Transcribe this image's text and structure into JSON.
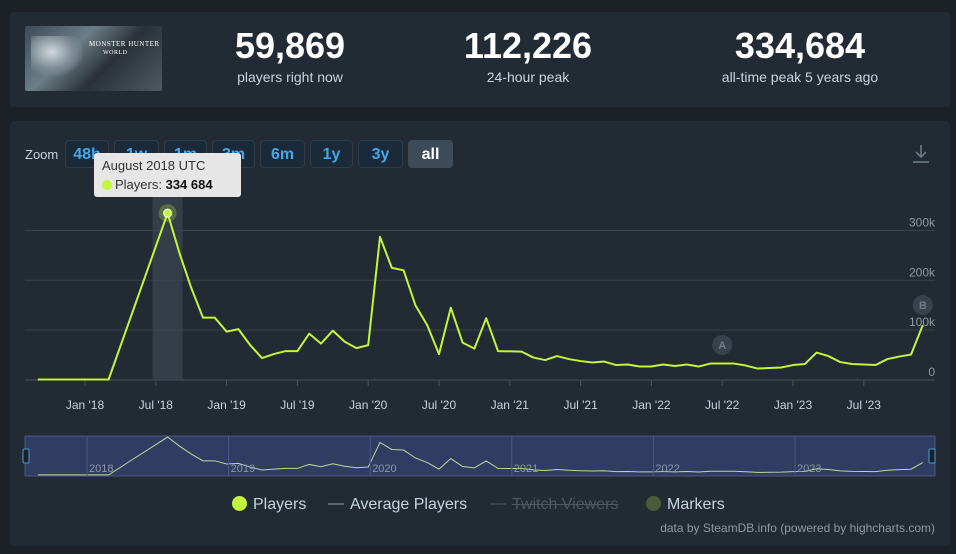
{
  "stats": [
    {
      "value": "59,869",
      "label": "players right now"
    },
    {
      "value": "112,226",
      "label": "24-hour peak"
    },
    {
      "value": "334,684",
      "label": "all-time peak 5 years ago"
    }
  ],
  "game_image": {
    "logo_text": "MONSTER HUNTER",
    "logo_subtext": "WORLD"
  },
  "zoom": {
    "label": "Zoom",
    "buttons": [
      "48h",
      "1w",
      "1m",
      "3m",
      "6m",
      "1y",
      "3y",
      "all"
    ],
    "active": "all"
  },
  "tooltip": {
    "date": "August 2018 UTC",
    "series": "Players:",
    "value": "334 684"
  },
  "legend": [
    {
      "name": "Players",
      "style": "dot",
      "color": "#c3f53c"
    },
    {
      "name": "Average Players",
      "style": "line",
      "color": "#5c6772"
    },
    {
      "name": "Twitch Viewers",
      "style": "line-struck",
      "color": "#39434d"
    },
    {
      "name": "Markers",
      "style": "dot",
      "color": "#4a5b3a"
    }
  ],
  "credit": "data by SteamDB.info (powered by highcharts.com)",
  "chart_data": {
    "type": "line",
    "title": "",
    "xlabel": "",
    "ylabel": "",
    "x_ticks": [
      "Jan '18",
      "Jul '18",
      "Jan '19",
      "Jul '19",
      "Jan '20",
      "Jul '20",
      "Jan '21",
      "Jul '21",
      "Jan '22",
      "Jul '22",
      "Jan '23",
      "Jul '23"
    ],
    "y_ticks": [
      "0",
      "100k",
      "200k",
      "300k"
    ],
    "ylim": [
      0,
      335000
    ],
    "grid": true,
    "highlight_month": "2018-08",
    "series": [
      {
        "name": "Players",
        "color": "#c3f53c",
        "points": [
          [
            "2017-09",
            1000
          ],
          [
            "2017-12",
            1000
          ],
          [
            "2018-03",
            1000
          ],
          [
            "2018-08",
            334684
          ],
          [
            "2018-09",
            255000
          ],
          [
            "2018-10",
            185000
          ],
          [
            "2018-11",
            125000
          ],
          [
            "2018-12",
            125000
          ],
          [
            "2019-01",
            97000
          ],
          [
            "2019-02",
            102000
          ],
          [
            "2019-03",
            70000
          ],
          [
            "2019-04",
            44000
          ],
          [
            "2019-05",
            52000
          ],
          [
            "2019-06",
            58000
          ],
          [
            "2019-07",
            58000
          ],
          [
            "2019-08",
            93000
          ],
          [
            "2019-09",
            73000
          ],
          [
            "2019-10",
            99000
          ],
          [
            "2019-11",
            77000
          ],
          [
            "2019-12",
            64000
          ],
          [
            "2020-01",
            70000
          ],
          [
            "2020-02",
            287000
          ],
          [
            "2020-03",
            225000
          ],
          [
            "2020-04",
            220000
          ],
          [
            "2020-05",
            150000
          ],
          [
            "2020-06",
            110000
          ],
          [
            "2020-07",
            52000
          ],
          [
            "2020-08",
            145000
          ],
          [
            "2020-09",
            75000
          ],
          [
            "2020-10",
            63000
          ],
          [
            "2020-11",
            124000
          ],
          [
            "2020-12",
            58000
          ],
          [
            "2021-02",
            57000
          ],
          [
            "2021-03",
            45000
          ],
          [
            "2021-04",
            40000
          ],
          [
            "2021-05",
            48000
          ],
          [
            "2021-06",
            42000
          ],
          [
            "2021-07",
            38000
          ],
          [
            "2021-08",
            35000
          ],
          [
            "2021-09",
            37000
          ],
          [
            "2021-10",
            30000
          ],
          [
            "2021-11",
            31000
          ],
          [
            "2021-12",
            27000
          ],
          [
            "2022-01",
            27000
          ],
          [
            "2022-02",
            31000
          ],
          [
            "2022-03",
            28000
          ],
          [
            "2022-04",
            31000
          ],
          [
            "2022-05",
            27000
          ],
          [
            "2022-06",
            33000
          ],
          [
            "2022-08",
            33000
          ],
          [
            "2022-09",
            29000
          ],
          [
            "2022-10",
            23000
          ],
          [
            "2022-11",
            24000
          ],
          [
            "2022-12",
            25000
          ],
          [
            "2023-01",
            30000
          ],
          [
            "2023-02",
            32000
          ],
          [
            "2023-03",
            55000
          ],
          [
            "2023-04",
            48000
          ],
          [
            "2023-05",
            36000
          ],
          [
            "2023-06",
            32000
          ],
          [
            "2023-07",
            31000
          ],
          [
            "2023-08",
            30000
          ],
          [
            "2023-09",
            42000
          ],
          [
            "2023-10",
            47000
          ],
          [
            "2023-11",
            51000
          ],
          [
            "2023-12",
            110000
          ]
        ]
      }
    ],
    "markers": [
      {
        "label": "A",
        "date": "2022-07"
      },
      {
        "label": "B",
        "date": "2023-12"
      }
    ],
    "navigator": {
      "labels": [
        "2018",
        "2019",
        "2020",
        "2021",
        "2022",
        "2023"
      ]
    }
  }
}
